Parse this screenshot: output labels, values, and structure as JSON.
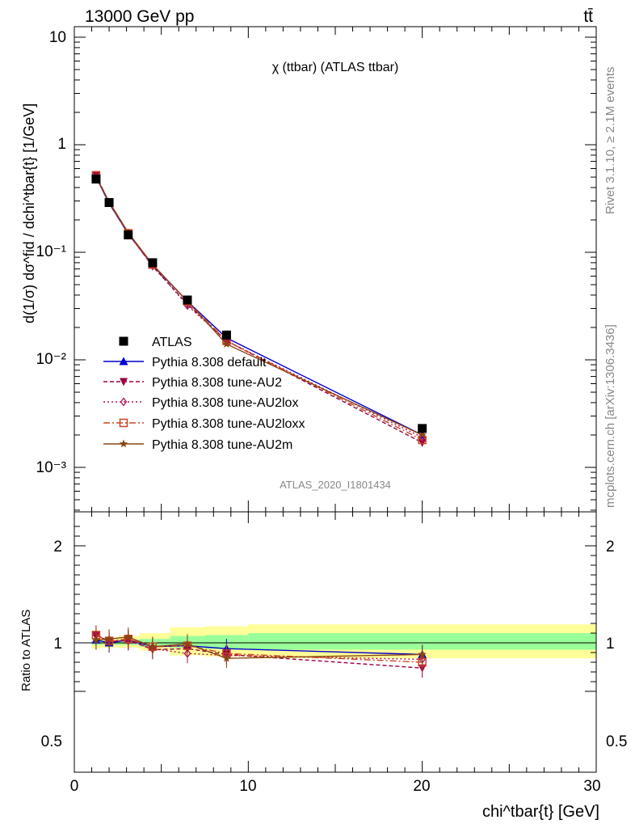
{
  "header": {
    "left": "13000 GeV pp",
    "right": "tt̄"
  },
  "side_labels": {
    "rivet": "Rivet 3.1.10, ≥ 2.1M events",
    "mcplots": "mcplots.cern.ch [arXiv:1306.3436]"
  },
  "chart_data": [
    {
      "type": "line",
      "title": "χ (ttbar) (ATLAS ttbar)",
      "analysis_label": "ATLAS_2020_I1801434",
      "ylabel": "d(1/σ) dσ^fid / dchi^tbar{t} [1/GeV]",
      "yscale": "log",
      "ylim": [
        0.0003,
        12
      ],
      "xlim": [
        0,
        30
      ],
      "ytick_labels": [
        "10",
        "1",
        "10⁻¹",
        "10⁻²",
        "10⁻³"
      ],
      "x": [
        1.25,
        2.0,
        3.1,
        4.5,
        6.5,
        8.75,
        20.0
      ],
      "series": [
        {
          "name": "ATLAS",
          "color": "#000000",
          "marker": "square",
          "dash": "",
          "values": [
            0.48,
            0.29,
            0.145,
            0.08,
            0.036,
            0.017,
            0.0023
          ]
        },
        {
          "name": "Pythia 8.308 default",
          "color": "#0000cc",
          "marker": "triangle",
          "dash": "",
          "values": [
            0.5,
            0.285,
            0.148,
            0.076,
            0.035,
            0.016,
            0.002
          ]
        },
        {
          "name": "Pythia 8.308 tune-AU2",
          "color": "#990044",
          "marker": "triangle-down",
          "dash": "5,3",
          "values": [
            0.52,
            0.29,
            0.15,
            0.074,
            0.033,
            0.015,
            0.0017
          ]
        },
        {
          "name": "Pythia 8.308 tune-AU2lox",
          "color": "#aa1155",
          "marker": "diamond",
          "dash": "2,3",
          "values": [
            0.52,
            0.29,
            0.148,
            0.075,
            0.032,
            0.015,
            0.0019
          ]
        },
        {
          "name": "Pythia 8.308 tune-AU2loxx",
          "color": "#cc4422",
          "marker": "square-open",
          "dash": "8,3,2,3",
          "values": [
            0.52,
            0.29,
            0.15,
            0.077,
            0.035,
            0.015,
            0.0018
          ]
        },
        {
          "name": "Pythia 8.308 tune-AU2m",
          "color": "#8b4513",
          "marker": "star",
          "dash": "",
          "values": [
            0.5,
            0.295,
            0.152,
            0.077,
            0.035,
            0.014,
            0.002
          ]
        }
      ]
    },
    {
      "type": "line",
      "ylabel": "Ratio to ATLAS",
      "xlabel": "chi^tbar{t} [GeV]",
      "xlim": [
        0,
        30
      ],
      "ylim": [
        0.4,
        2.3
      ],
      "xtick_labels": [
        "0",
        "10",
        "20",
        "30"
      ],
      "ytick_labels": [
        "2",
        "1",
        "0.5"
      ],
      "bands": {
        "edges": [
          1,
          1.5,
          2.5,
          3.75,
          5.5,
          7.5,
          10,
          30
        ],
        "inner_low": [
          0.98,
          0.98,
          0.98,
          0.96,
          0.95,
          0.94,
          0.93
        ],
        "inner_high": [
          1.02,
          1.02,
          1.03,
          1.04,
          1.07,
          1.08,
          1.1
        ],
        "outer_low": [
          0.94,
          0.95,
          0.95,
          0.92,
          0.87,
          0.86,
          0.84
        ],
        "outer_high": [
          1.05,
          1.05,
          1.07,
          1.1,
          1.16,
          1.17,
          1.19
        ]
      },
      "x": [
        1.25,
        2.0,
        3.1,
        4.5,
        6.5,
        8.75,
        20.0
      ],
      "series": [
        {
          "name": "Pythia 8.308 default",
          "values": [
            1.03,
            1.0,
            1.03,
            0.96,
            0.97,
            0.94,
            0.88
          ]
        },
        {
          "name": "Pythia 8.308 tune-AU2",
          "values": [
            1.08,
            1.01,
            1.03,
            0.93,
            0.94,
            0.88,
            0.74
          ]
        },
        {
          "name": "Pythia 8.308 tune-AU2lox",
          "values": [
            1.08,
            1.02,
            1.02,
            0.94,
            0.89,
            0.87,
            0.83
          ]
        },
        {
          "name": "Pythia 8.308 tune-AU2loxx",
          "values": [
            1.08,
            1.02,
            1.04,
            0.96,
            0.97,
            0.89,
            0.8
          ]
        },
        {
          "name": "Pythia 8.308 tune-AU2m",
          "values": [
            1.03,
            1.04,
            1.06,
            0.96,
            0.99,
            0.84,
            0.88
          ]
        }
      ]
    }
  ]
}
